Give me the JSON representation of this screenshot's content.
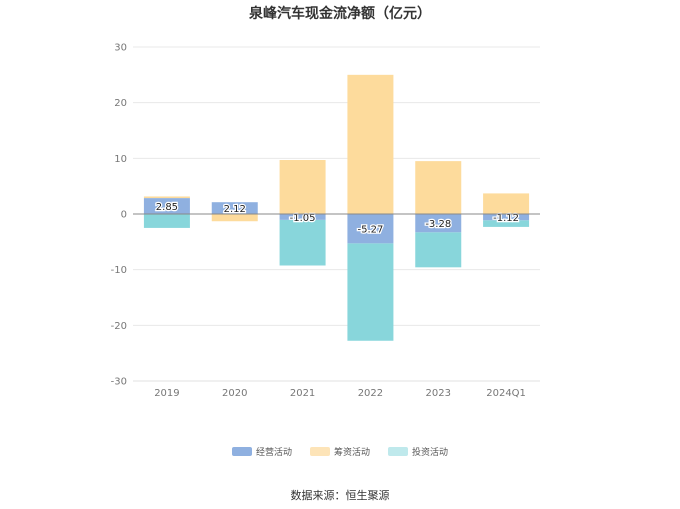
{
  "title": "泉峰汽车现金流净额（亿元）",
  "source": "数据来源：恒生聚源",
  "chart_data": {
    "type": "bar",
    "stacked": true,
    "title": "泉峰汽车现金流净额（亿元）",
    "categories": [
      "2019",
      "2020",
      "2021",
      "2022",
      "2023",
      "2024Q1"
    ],
    "ylim": [
      -30,
      30
    ],
    "yticks": [
      30,
      20,
      10,
      0,
      -10,
      -20,
      -30
    ],
    "grid": true,
    "legend_position": "bottom",
    "series": [
      {
        "name": "经营活动",
        "color": "#8fb0e0",
        "values": [
          2.85,
          2.12,
          -1.05,
          -5.27,
          -3.28,
          -1.12
        ],
        "labels": [
          "2.85",
          "2.12",
          "-1.05",
          "-5.27",
          "-3.28",
          "-1.12"
        ]
      },
      {
        "name": "筹资活动",
        "color": "#fddb9c",
        "values": [
          0.3,
          -1.3,
          9.7,
          25.0,
          9.5,
          3.7
        ]
      },
      {
        "name": "投资活动",
        "color": "#88d6db",
        "values": [
          -2.5,
          0,
          -8.2,
          -17.5,
          -6.3,
          -1.2
        ]
      }
    ]
  }
}
